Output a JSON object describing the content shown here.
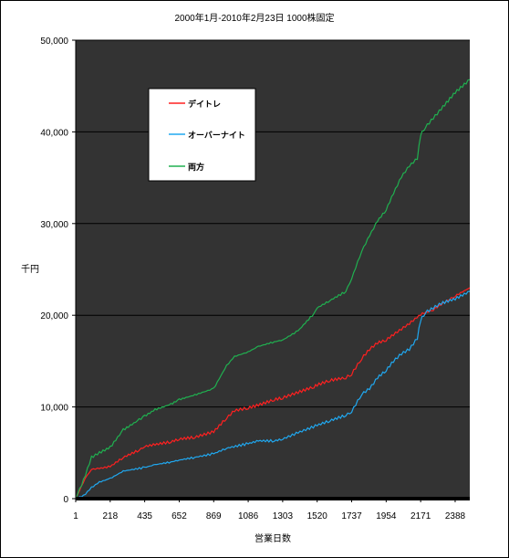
{
  "chart_data": {
    "type": "line",
    "title": "2000年1月-2010年2月23日 1000株固定",
    "xlabel": "営業日数",
    "ylabel": "千円",
    "x_ticks": [
      "1",
      "218",
      "435",
      "652",
      "869",
      "1086",
      "1303",
      "1520",
      "1737",
      "1954",
      "2171",
      "2388"
    ],
    "xlim": [
      1,
      2480
    ],
    "ylim": [
      0,
      50000
    ],
    "y_ticks": [
      0,
      10000,
      20000,
      30000,
      40000,
      50000
    ],
    "y_tick_labels": [
      "0",
      "10,000",
      "20,000",
      "30,000",
      "40,000",
      "50,000"
    ],
    "grid": true,
    "legend_position": "top-left",
    "series": [
      {
        "name": "デイトレ",
        "color": "#ff2020",
        "x": [
          1,
          60,
          100,
          150,
          218,
          300,
          400,
          435,
          500,
          600,
          652,
          750,
          869,
          950,
          1000,
          1086,
          1150,
          1250,
          1303,
          1400,
          1500,
          1520,
          1600,
          1700,
          1737,
          1800,
          1850,
          1900,
          1954,
          2000,
          2050,
          2100,
          2171,
          2250,
          2300,
          2350,
          2388,
          2480
        ],
        "values": [
          0,
          2200,
          3200,
          3300,
          3500,
          4500,
          5300,
          5700,
          5900,
          6200,
          6500,
          6700,
          7300,
          8800,
          9600,
          9900,
          10200,
          10800,
          11000,
          11600,
          12200,
          12400,
          12900,
          13200,
          13600,
          15300,
          16300,
          17000,
          17300,
          17900,
          18500,
          19100,
          20100,
          20600,
          21200,
          21700,
          22100,
          23000
        ]
      },
      {
        "name": "オーバーナイト",
        "color": "#20a8f0",
        "x": [
          1,
          50,
          100,
          150,
          218,
          300,
          435,
          500,
          600,
          652,
          750,
          869,
          950,
          1086,
          1150,
          1250,
          1303,
          1400,
          1520,
          1600,
          1700,
          1737,
          1800,
          1850,
          1900,
          1954,
          2000,
          2050,
          2100,
          2150,
          2171,
          2200,
          2250,
          2300,
          2388,
          2480
        ],
        "values": [
          0,
          300,
          1200,
          1800,
          2200,
          3000,
          3400,
          3700,
          4000,
          4200,
          4500,
          4900,
          5500,
          6000,
          6300,
          6300,
          6500,
          7200,
          8000,
          8500,
          9100,
          9500,
          11400,
          12000,
          13200,
          14000,
          15000,
          15800,
          16300,
          17500,
          19500,
          20300,
          20800,
          21300,
          21800,
          22600
        ]
      },
      {
        "name": "両方",
        "color": "#20b050",
        "x": [
          1,
          50,
          100,
          150,
          218,
          300,
          400,
          435,
          500,
          600,
          652,
          750,
          869,
          950,
          1000,
          1086,
          1150,
          1250,
          1303,
          1400,
          1500,
          1520,
          1600,
          1700,
          1737,
          1800,
          1850,
          1900,
          1954,
          2000,
          2050,
          2100,
          2150,
          2171,
          2200,
          2250,
          2300,
          2388,
          2480
        ],
        "values": [
          0,
          2000,
          4500,
          5000,
          5600,
          7500,
          8600,
          9000,
          9700,
          10300,
          10800,
          11300,
          12000,
          14500,
          15500,
          16000,
          16600,
          17100,
          17300,
          18300,
          20200,
          20800,
          21600,
          22600,
          24000,
          27000,
          28700,
          30300,
          31500,
          33300,
          35100,
          36300,
          37100,
          39700,
          40500,
          41500,
          42500,
          44300,
          45700
        ]
      }
    ]
  }
}
